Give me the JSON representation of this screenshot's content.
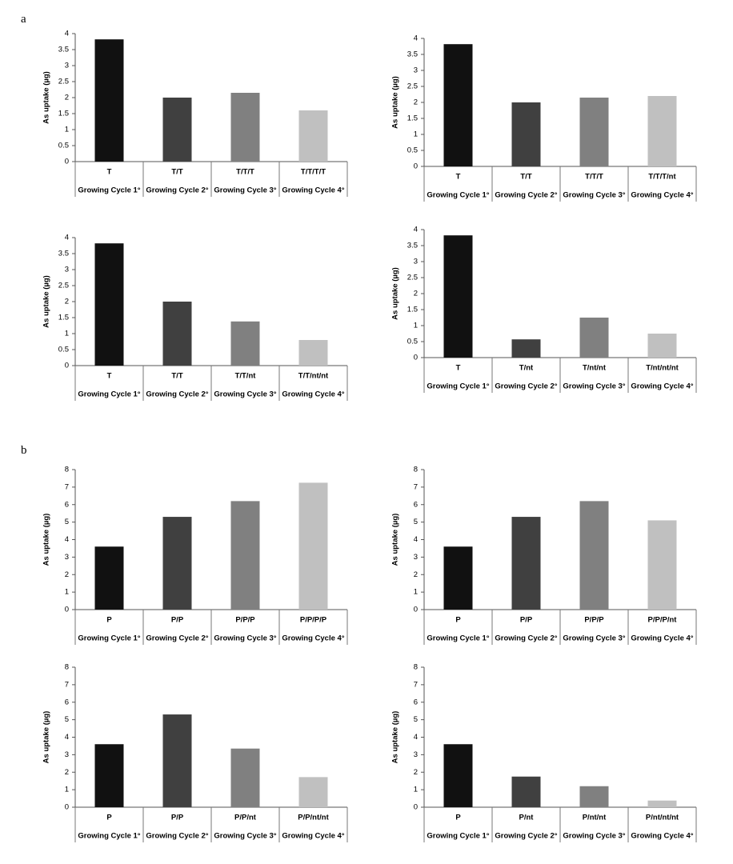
{
  "panel_labels": [
    "a",
    "b"
  ],
  "colors": [
    "#111111",
    "#404040",
    "#808080",
    "#c0c0c0"
  ],
  "chart_data": [
    {
      "type": "bar",
      "panel": "a",
      "ylabel": "As uptake (µg)",
      "ylim": [
        0,
        4
      ],
      "yticks": [
        "0",
        "0.5",
        "1",
        "1.5",
        "2",
        "2.5",
        "3",
        "3.5",
        "4"
      ],
      "categories": [
        "T",
        "T/T",
        "T/T/T",
        "T/T/T/T"
      ],
      "groups": [
        "Growing Cycle 1°",
        "Growing Cycle 2°",
        "Growing Cycle 3°",
        "Growing Cycle 4°"
      ],
      "values": [
        3.82,
        2.0,
        2.15,
        1.6
      ]
    },
    {
      "type": "bar",
      "panel": "a",
      "ylabel": "As uptake (µg)",
      "ylim": [
        0,
        4
      ],
      "yticks": [
        "0",
        "0.5",
        "1",
        "1.5",
        "2",
        "2.5",
        "3",
        "3.5",
        "4"
      ],
      "categories": [
        "T",
        "T/T",
        "T/T/T",
        "T/T/T/nt"
      ],
      "groups": [
        "Growing Cycle 1°",
        "Growing Cycle 2°",
        "Growing Cycle 3°",
        "Growing Cycle 4°"
      ],
      "values": [
        3.82,
        2.0,
        2.15,
        2.2
      ]
    },
    {
      "type": "bar",
      "panel": "a",
      "ylabel": "As uptake (µg)",
      "ylim": [
        0,
        4
      ],
      "yticks": [
        "0",
        "0.5",
        "1",
        "1.5",
        "2",
        "2.5",
        "3",
        "3.5",
        "4"
      ],
      "categories": [
        "T",
        "T/T",
        "T/T/nt",
        "T/T/nt/nt"
      ],
      "groups": [
        "Growing Cycle 1°",
        "Growing Cycle 2°",
        "Growing Cycle 3°",
        "Growing Cycle 4°"
      ],
      "values": [
        3.82,
        2.0,
        1.38,
        0.8
      ]
    },
    {
      "type": "bar",
      "panel": "a",
      "ylabel": "As uptake (µg)",
      "ylim": [
        0,
        4
      ],
      "yticks": [
        "0",
        "0.5",
        "1",
        "1.5",
        "2",
        "2.5",
        "3",
        "3.5",
        "4"
      ],
      "categories": [
        "T",
        "T/nt",
        "T/nt/nt",
        "T/nt/nt/nt"
      ],
      "groups": [
        "Growing Cycle 1°",
        "Growing Cycle 2°",
        "Growing Cycle 3°",
        "Growing Cycle 4°"
      ],
      "values": [
        3.82,
        0.57,
        1.25,
        0.75
      ]
    },
    {
      "type": "bar",
      "panel": "b",
      "ylabel": "As uptake (µg)",
      "ylim": [
        0,
        8
      ],
      "yticks": [
        "0",
        "1",
        "2",
        "3",
        "4",
        "5",
        "6",
        "7",
        "8"
      ],
      "categories": [
        "P",
        "P/P",
        "P/P/P",
        "P/P/P/P"
      ],
      "groups": [
        "Growing Cycle 1°",
        "Growing Cycle 2°",
        "Growing Cycle 3°",
        "Growing Cycle 4°"
      ],
      "values": [
        3.6,
        5.3,
        6.2,
        7.25
      ]
    },
    {
      "type": "bar",
      "panel": "b",
      "ylabel": "As uptake (µg)",
      "ylim": [
        0,
        8
      ],
      "yticks": [
        "0",
        "1",
        "2",
        "3",
        "4",
        "5",
        "6",
        "7",
        "8"
      ],
      "categories": [
        "P",
        "P/P",
        "P/P/P",
        "P/P/P/nt"
      ],
      "groups": [
        "Growing Cycle 1°",
        "Growing Cycle 2°",
        "Growing Cycle 3°",
        "Growing Cycle 4°"
      ],
      "values": [
        3.6,
        5.3,
        6.2,
        5.1
      ]
    },
    {
      "type": "bar",
      "panel": "b",
      "ylabel": "As uptake (µg)",
      "ylim": [
        0,
        8
      ],
      "yticks": [
        "0",
        "1",
        "2",
        "3",
        "4",
        "5",
        "6",
        "7",
        "8"
      ],
      "categories": [
        "P",
        "P/P",
        "P/P/nt",
        "P/P/nt/nt"
      ],
      "groups": [
        "Growing Cycle 1°",
        "Growing Cycle 2°",
        "Growing Cycle 3°",
        "Growing Cycle 4°"
      ],
      "values": [
        3.6,
        5.3,
        3.35,
        1.72
      ]
    },
    {
      "type": "bar",
      "panel": "b",
      "ylabel": "As uptake (µg)",
      "ylim": [
        0,
        8
      ],
      "yticks": [
        "0",
        "1",
        "2",
        "3",
        "4",
        "5",
        "6",
        "7",
        "8"
      ],
      "categories": [
        "P",
        "P/nt",
        "P/nt/nt",
        "P/nt/nt/nt"
      ],
      "groups": [
        "Growing Cycle 1°",
        "Growing Cycle 2°",
        "Growing Cycle 3°",
        "Growing Cycle 4°"
      ],
      "values": [
        3.6,
        1.75,
        1.2,
        0.38
      ]
    }
  ]
}
